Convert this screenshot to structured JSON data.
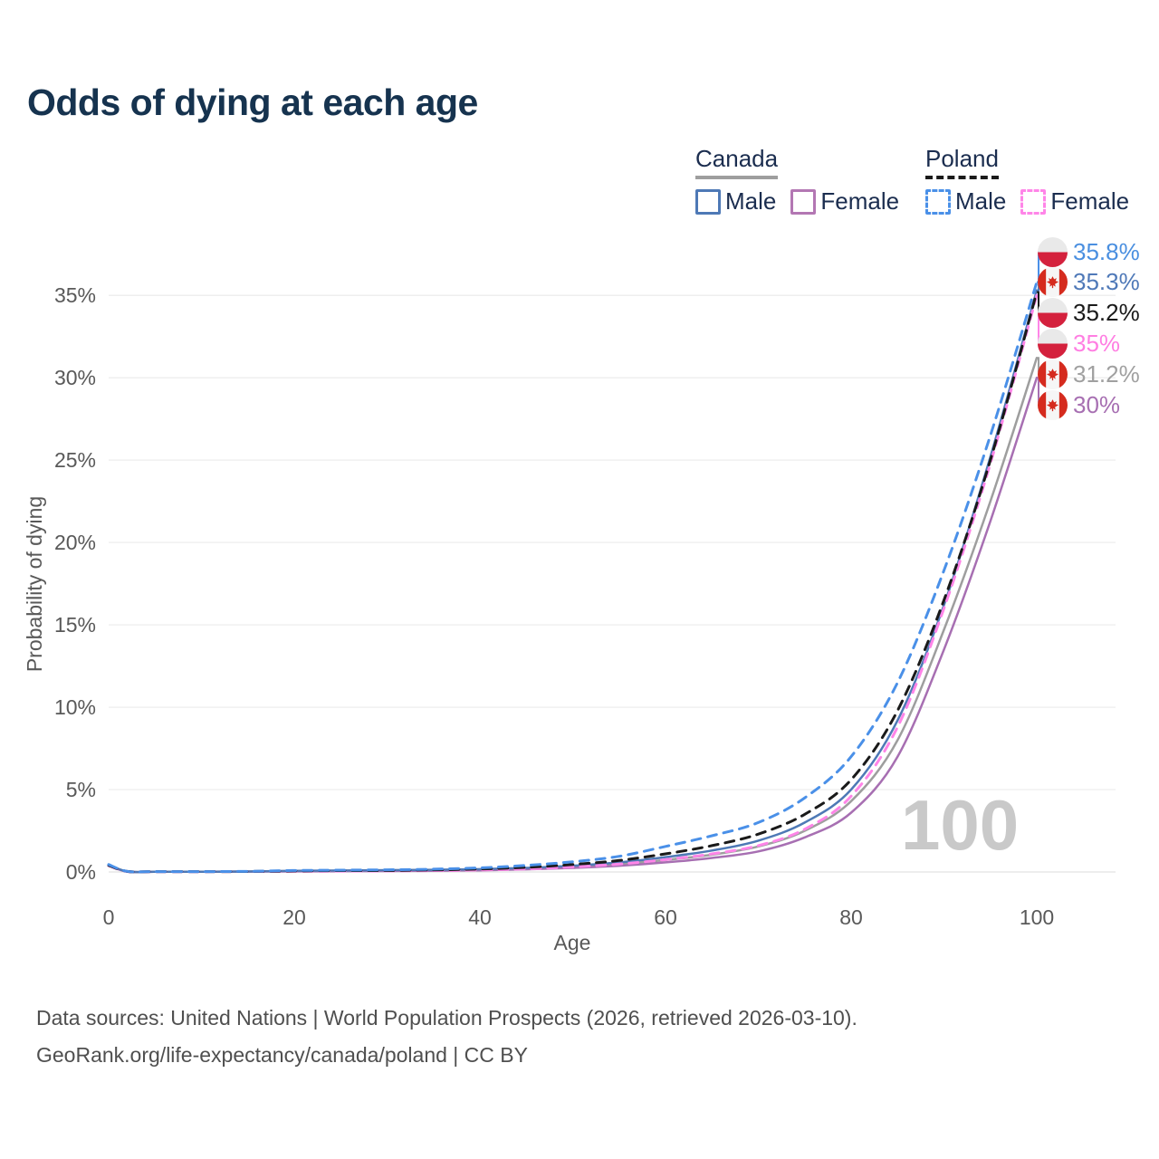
{
  "header": {
    "title": "Odds of dying at each age"
  },
  "legend": {
    "groups": [
      {
        "name": "Canada",
        "line_style": "solid",
        "underline_color": "#9e9e9e",
        "items": [
          {
            "label": "Male",
            "color": "#4e79b6"
          },
          {
            "label": "Female",
            "color": "#b377b3"
          }
        ]
      },
      {
        "name": "Poland",
        "line_style": "dashed",
        "underline_color": "#1a1a1a",
        "items": [
          {
            "label": "Male",
            "color": "#4a90e8"
          },
          {
            "label": "Female",
            "color": "#ff85e8"
          }
        ]
      }
    ]
  },
  "chart_data": {
    "type": "line",
    "title": "Odds of dying at each age",
    "xlabel": "Age",
    "ylabel": "Probability of dying",
    "x_ticks": [
      0,
      20,
      40,
      60,
      80,
      100
    ],
    "y_tick_values": [
      0,
      5,
      10,
      15,
      20,
      25,
      30,
      35
    ],
    "y_tick_labels": [
      "0%",
      "5%",
      "10%",
      "15%",
      "20%",
      "25%",
      "30%",
      "35%"
    ],
    "xlim": [
      0,
      100
    ],
    "ylim": [
      0,
      38
    ],
    "grid": "horizontal",
    "legend_position": "top-right",
    "highlighted_age": "100",
    "ages": [
      0,
      2,
      5,
      10,
      15,
      20,
      25,
      30,
      35,
      40,
      45,
      50,
      55,
      60,
      65,
      70,
      75,
      80,
      85,
      90,
      95,
      100
    ],
    "series": [
      {
        "id": "canada-total",
        "name": "Canada",
        "sex": "both",
        "color": "#9e9e9e",
        "dash": false,
        "width": 2.5,
        "end_label": "31.2%",
        "label_color": "#a0a0a0",
        "flag": "canada",
        "label_row": 4,
        "values": [
          0.42,
          0.025,
          0.013,
          0.013,
          0.025,
          0.055,
          0.07,
          0.085,
          0.1,
          0.14,
          0.2,
          0.31,
          0.48,
          0.73,
          1.05,
          1.55,
          2.5,
          4.3,
          8.0,
          14.7,
          22.5,
          31.2
        ]
      },
      {
        "id": "canada-female",
        "name": "Canada Female",
        "sex": "female",
        "color": "#a76fb2",
        "dash": false,
        "width": 2.5,
        "end_label": "30%",
        "label_color": "#a76fb2",
        "flag": "canada",
        "label_row": 5,
        "values": [
          0.4,
          0.02,
          0.012,
          0.012,
          0.02,
          0.035,
          0.045,
          0.055,
          0.07,
          0.1,
          0.16,
          0.25,
          0.38,
          0.58,
          0.85,
          1.25,
          2.1,
          3.6,
          7.0,
          13.5,
          21.3,
          30.0
        ]
      },
      {
        "id": "canada-male",
        "name": "Canada Male",
        "sex": "male",
        "color": "#4e79b6",
        "dash": false,
        "width": 2.5,
        "end_label": "35.3%",
        "label_color": "#4f79b8",
        "flag": "canada",
        "label_row": 1,
        "values": [
          0.45,
          0.03,
          0.015,
          0.015,
          0.03,
          0.07,
          0.09,
          0.11,
          0.13,
          0.17,
          0.25,
          0.38,
          0.58,
          0.9,
          1.3,
          1.9,
          3.0,
          5.0,
          9.2,
          16.2,
          25.2,
          35.3
        ]
      },
      {
        "id": "poland-female",
        "name": "Poland Female",
        "sex": "female",
        "color": "#ff85e8",
        "dash": true,
        "width": 3,
        "end_label": "35%",
        "label_color": "#ff7ee2",
        "flag": "poland",
        "label_row": 3,
        "values": [
          0.38,
          0.03,
          0.015,
          0.015,
          0.025,
          0.04,
          0.05,
          0.06,
          0.08,
          0.12,
          0.19,
          0.3,
          0.48,
          0.75,
          1.1,
          1.6,
          2.6,
          4.6,
          8.8,
          16.0,
          24.8,
          35.0
        ]
      },
      {
        "id": "poland-total",
        "name": "Poland",
        "sex": "both",
        "color": "#1a1a1a",
        "dash": true,
        "width": 3,
        "end_label": "35.2%",
        "label_color": "#1a1a1a",
        "flag": "poland",
        "label_row": 2,
        "values": [
          0.4,
          0.035,
          0.02,
          0.02,
          0.03,
          0.06,
          0.08,
          0.09,
          0.12,
          0.18,
          0.28,
          0.45,
          0.7,
          1.1,
          1.6,
          2.3,
          3.5,
          5.6,
          9.8,
          16.5,
          25.0,
          35.2
        ]
      },
      {
        "id": "poland-male",
        "name": "Poland Male",
        "sex": "male",
        "color": "#4a90e8",
        "dash": true,
        "width": 3,
        "end_label": "35.8%",
        "label_color": "#4a8fe0",
        "flag": "poland",
        "label_row": 0,
        "values": [
          0.45,
          0.04,
          0.02,
          0.02,
          0.04,
          0.09,
          0.11,
          0.13,
          0.17,
          0.25,
          0.4,
          0.62,
          0.95,
          1.55,
          2.2,
          3.0,
          4.5,
          7.0,
          11.5,
          18.3,
          26.5,
          35.8
        ]
      }
    ]
  },
  "footer": {
    "line1": "Data sources: United Nations | World Population Prospects (2026, retrieved 2026-03-10).",
    "line2": "GeoRank.org/life-expectancy/canada/poland | CC BY"
  }
}
